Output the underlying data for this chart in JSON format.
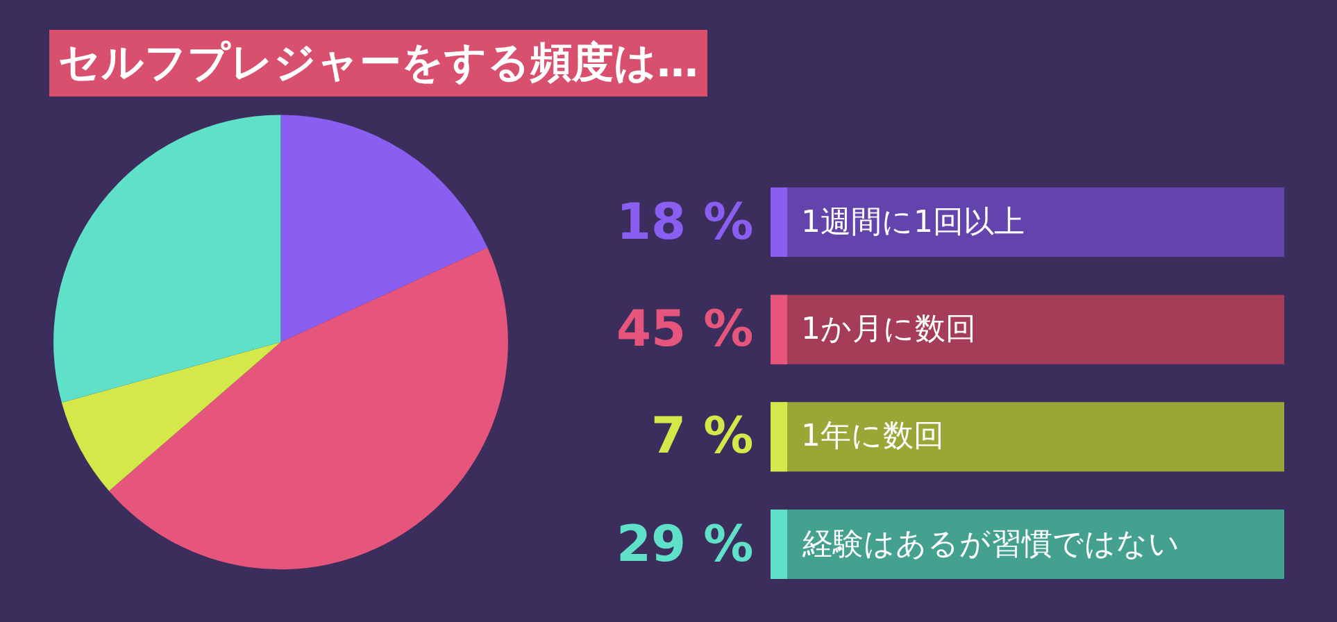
{
  "chart_data": {
    "type": "pie",
    "title": "セルフプレジャーをする頻度は…",
    "categories": [
      "1週間に1回以上",
      "1か月に数回",
      "1年に数回",
      "経験はあるが習慣ではない"
    ],
    "values": [
      18,
      45,
      7,
      29
    ],
    "colors": [
      "#8a5ef0",
      "#e6557c",
      "#d4e84a",
      "#5fe0c8"
    ],
    "value_labels": [
      "18 %",
      "45 %",
      "7 %",
      "29 %"
    ],
    "legend": "right"
  }
}
